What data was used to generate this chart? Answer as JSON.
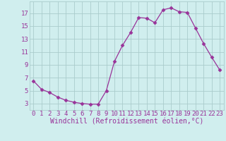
{
  "x": [
    0,
    1,
    2,
    3,
    4,
    5,
    6,
    7,
    8,
    9,
    10,
    11,
    12,
    13,
    14,
    15,
    16,
    17,
    18,
    19,
    20,
    21,
    22,
    23
  ],
  "y": [
    6.5,
    5.2,
    4.7,
    4.0,
    3.5,
    3.2,
    3.0,
    2.9,
    2.9,
    5.0,
    9.5,
    12.0,
    14.0,
    16.3,
    16.2,
    15.5,
    17.5,
    17.8,
    17.2,
    17.1,
    14.7,
    12.3,
    10.2,
    8.2
  ],
  "line_color": "#993399",
  "marker": "D",
  "marker_size": 2.5,
  "bg_color": "#d0eeee",
  "grid_color": "#aacccc",
  "xlabel": "Windchill (Refroidissement éolien,°C)",
  "xlabel_color": "#993399",
  "xlabel_fontsize": 7,
  "tick_color": "#993399",
  "tick_fontsize": 6.5,
  "yticks": [
    3,
    5,
    7,
    9,
    11,
    13,
    15,
    17
  ],
  "xlim": [
    -0.5,
    23.5
  ],
  "ylim": [
    2.0,
    18.8
  ],
  "xticks": [
    0,
    1,
    2,
    3,
    4,
    5,
    6,
    7,
    8,
    9,
    10,
    11,
    12,
    13,
    14,
    15,
    16,
    17,
    18,
    19,
    20,
    21,
    22,
    23
  ]
}
